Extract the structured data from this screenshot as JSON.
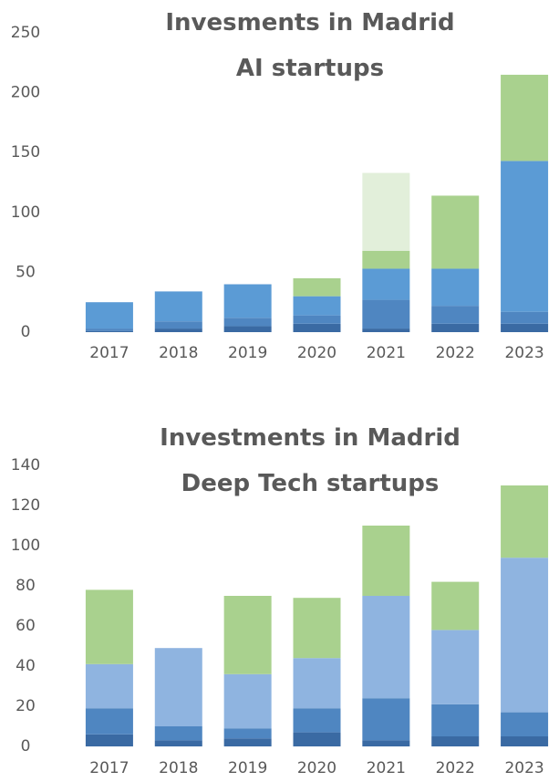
{
  "chart_data": [
    {
      "type": "bar",
      "stacked": true,
      "title": "Invesments in Madrid AI startups",
      "categories": [
        "2017",
        "2018",
        "2019",
        "2020",
        "2021",
        "2022",
        "2023"
      ],
      "series": [
        {
          "color": "#3a6aa3",
          "values": [
            1,
            3,
            5,
            7,
            3,
            7,
            7
          ]
        },
        {
          "color": "#4f86c1",
          "values": [
            2,
            6,
            7,
            7,
            24,
            15,
            10
          ]
        },
        {
          "color": "#5b9bd5",
          "values": [
            22,
            25,
            28,
            16,
            26,
            31,
            126
          ]
        },
        {
          "color": "#a9d18e",
          "values": [
            0,
            0,
            0,
            15,
            15,
            61,
            72
          ]
        },
        {
          "color": "#e2efda",
          "values": [
            0,
            0,
            0,
            0,
            65,
            0,
            0
          ]
        }
      ],
      "ylim": [
        0,
        250
      ],
      "yticks": [
        0,
        50,
        100,
        150,
        200,
        250
      ]
    },
    {
      "type": "bar",
      "stacked": true,
      "title": "Investments in Madrid Deep Tech startups",
      "categories": [
        "2017",
        "2018",
        "2019",
        "2020",
        "2021",
        "2022",
        "2023"
      ],
      "series": [
        {
          "color": "#3a6aa3",
          "values": [
            6,
            3,
            4,
            7,
            3,
            5,
            5
          ]
        },
        {
          "color": "#4f86c1",
          "values": [
            13,
            7,
            5,
            12,
            21,
            16,
            12
          ]
        },
        {
          "color": "#8fb4e0",
          "values": [
            22,
            39,
            27,
            25,
            51,
            37,
            77
          ]
        },
        {
          "color": "#a9d18e",
          "values": [
            37,
            0,
            39,
            30,
            35,
            24,
            36
          ]
        }
      ],
      "ylim": [
        0,
        140
      ],
      "yticks": [
        0,
        20,
        40,
        60,
        80,
        100,
        120,
        140
      ]
    }
  ]
}
